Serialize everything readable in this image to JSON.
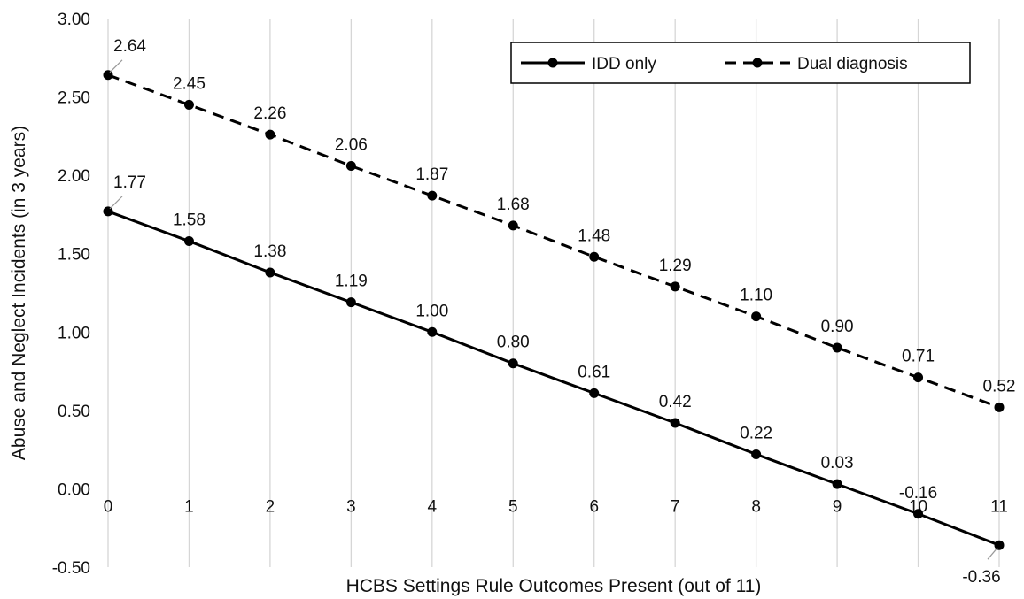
{
  "chart_data": {
    "type": "line",
    "title": "",
    "xlabel": "HCBS Settings Rule Outcomes Present (out of 11)",
    "ylabel": "Abuse and Neglect Incidents (in 3 years)",
    "x": [
      0,
      1,
      2,
      3,
      4,
      5,
      6,
      7,
      8,
      9,
      10,
      11
    ],
    "x_tick_labels": [
      "0",
      "1",
      "2",
      "3",
      "4",
      "5",
      "6",
      "7",
      "8",
      "9",
      "10",
      "11"
    ],
    "ylim": [
      -0.5,
      3.0
    ],
    "y_ticks": [
      -0.5,
      0,
      0.5,
      1.0,
      1.5,
      2.0,
      2.5,
      3.0
    ],
    "y_tick_labels": [
      "-0.50",
      "0.00",
      "0.50",
      "1.00",
      "1.50",
      "2.00",
      "2.50",
      "3.00"
    ],
    "grid": "vertical",
    "legend_position": "top-right",
    "series": [
      {
        "name": "IDD only",
        "line_style": "solid",
        "color": "#000000",
        "values": [
          1.77,
          1.58,
          1.38,
          1.19,
          1.0,
          0.8,
          0.61,
          0.42,
          0.22,
          0.03,
          -0.16,
          -0.36
        ],
        "labels": [
          "1.77",
          "1.58",
          "1.38",
          "1.19",
          "1.00",
          "0.80",
          "0.61",
          "0.42",
          "0.22",
          "0.03",
          "-0.16",
          "-0.36"
        ]
      },
      {
        "name": "Dual diagnosis",
        "line_style": "dashed",
        "color": "#000000",
        "values": [
          2.64,
          2.45,
          2.26,
          2.06,
          1.87,
          1.68,
          1.48,
          1.29,
          1.1,
          0.9,
          0.71,
          0.52
        ],
        "labels": [
          "2.64",
          "2.45",
          "2.26",
          "2.06",
          "1.87",
          "1.68",
          "1.48",
          "1.29",
          "1.10",
          "0.90",
          "0.71",
          "0.52"
        ]
      }
    ]
  }
}
